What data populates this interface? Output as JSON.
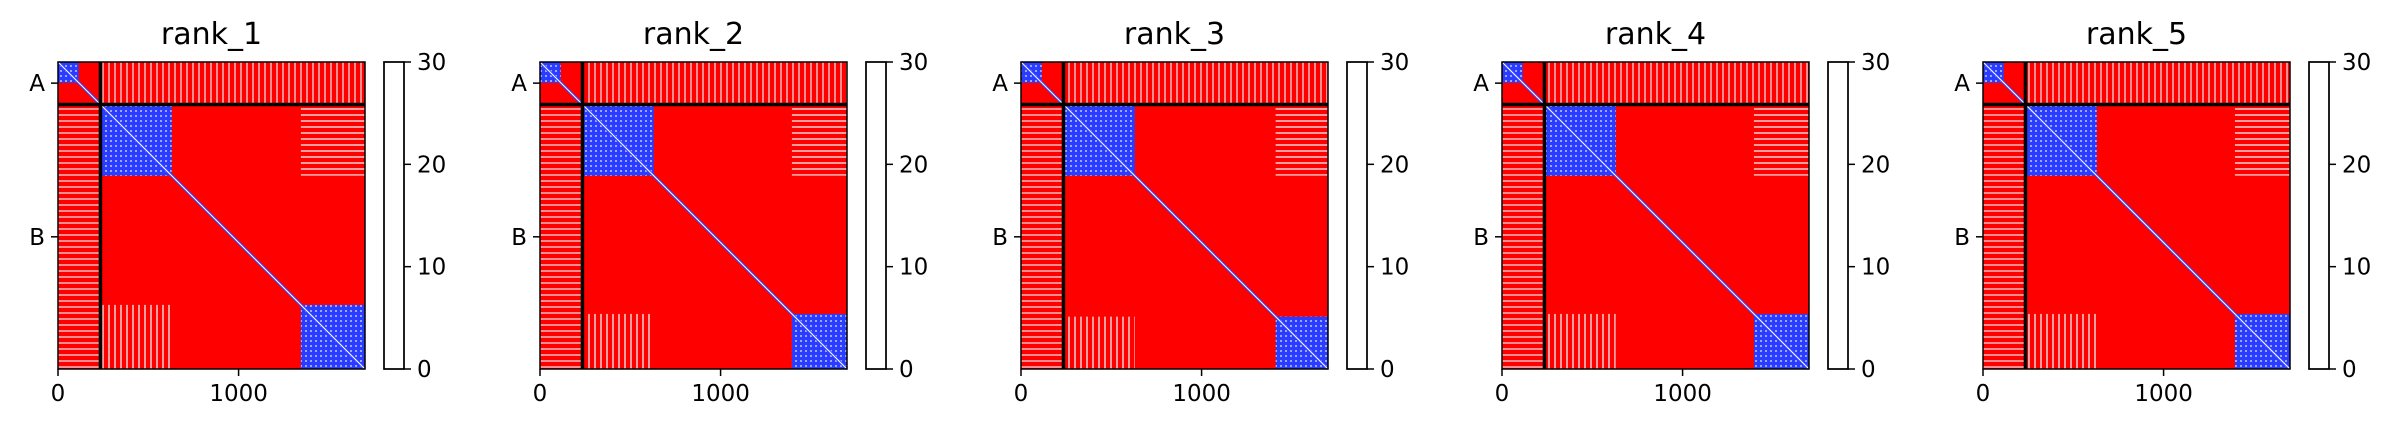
{
  "chart_data": {
    "type": "heatmap",
    "description_units": "residue index",
    "n_residues": 1700,
    "chain_boundary": 235,
    "chain_labels": [
      "A",
      "B"
    ],
    "chain_label_positions": [
      117,
      968
    ],
    "x_ticks": [
      0,
      1000
    ],
    "x_tick_labels": [
      "0",
      "1000"
    ],
    "colorbar": {
      "min": 0,
      "max": 30,
      "ticks": [
        0,
        10,
        20,
        30
      ],
      "tick_labels": [
        "0",
        "10",
        "20",
        "30"
      ],
      "colors": [
        "#0000ff",
        "#ffffff",
        "#ff0000"
      ]
    },
    "panels": [
      {
        "title": "rank_1",
        "domains": [
          [
            0,
            115
          ],
          [
            235,
            630
          ],
          [
            1345,
            1700
          ]
        ]
      },
      {
        "title": "rank_2",
        "domains": [
          [
            0,
            115
          ],
          [
            235,
            630
          ],
          [
            1395,
            1700
          ]
        ]
      },
      {
        "title": "rank_3",
        "domains": [
          [
            0,
            115
          ],
          [
            235,
            630
          ],
          [
            1410,
            1700
          ]
        ]
      },
      {
        "title": "rank_4",
        "domains": [
          [
            0,
            115
          ],
          [
            235,
            630
          ],
          [
            1395,
            1700
          ]
        ]
      },
      {
        "title": "rank_5",
        "domains": [
          [
            0,
            115
          ],
          [
            235,
            630
          ],
          [
            1395,
            1700
          ]
        ]
      }
    ]
  }
}
